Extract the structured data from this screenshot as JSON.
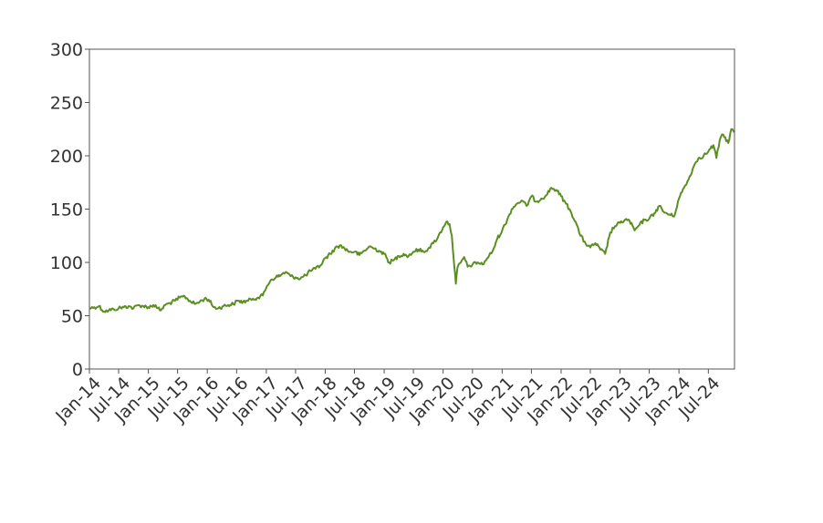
{
  "chart_data": {
    "type": "line",
    "title": "",
    "xlabel": "",
    "ylabel": "",
    "xlim": [
      "2014-01-01",
      "2024-12-10"
    ],
    "ylim": [
      0,
      300
    ],
    "grid": false,
    "y_ticks": [
      0,
      50,
      100,
      150,
      200,
      250,
      300
    ],
    "x_ticks": [
      {
        "date": "2014-01-01",
        "label": "Jan-14"
      },
      {
        "date": "2014-07-01",
        "label": "Jul-14"
      },
      {
        "date": "2015-01-01",
        "label": "Jan-15"
      },
      {
        "date": "2015-07-01",
        "label": "Jul-15"
      },
      {
        "date": "2016-01-01",
        "label": "Jan-16"
      },
      {
        "date": "2016-07-01",
        "label": "Jul-16"
      },
      {
        "date": "2017-01-01",
        "label": "Jan-17"
      },
      {
        "date": "2017-07-01",
        "label": "Jul-17"
      },
      {
        "date": "2018-01-01",
        "label": "Jan-18"
      },
      {
        "date": "2018-07-01",
        "label": "Jul-18"
      },
      {
        "date": "2019-01-01",
        "label": "Jan-19"
      },
      {
        "date": "2019-07-01",
        "label": "Jul-19"
      },
      {
        "date": "2020-01-01",
        "label": "Jan-20"
      },
      {
        "date": "2020-07-01",
        "label": "Jul-20"
      },
      {
        "date": "2021-01-01",
        "label": "Jan-21"
      },
      {
        "date": "2021-07-01",
        "label": "Jul-21"
      },
      {
        "date": "2022-01-01",
        "label": "Jan-22"
      },
      {
        "date": "2022-07-01",
        "label": "Jul-22"
      },
      {
        "date": "2023-01-01",
        "label": "Jan-23"
      },
      {
        "date": "2023-07-01",
        "label": "Jul-23"
      },
      {
        "date": "2024-01-01",
        "label": "Jan-24"
      },
      {
        "date": "2024-07-01",
        "label": "Jul-24"
      }
    ],
    "series": [
      {
        "color": "#5b8f22",
        "points": [
          [
            "2014-01-02",
            57
          ],
          [
            "2014-02-01",
            58
          ],
          [
            "2014-03-01",
            59
          ],
          [
            "2014-04-01",
            54
          ],
          [
            "2014-05-01",
            55
          ],
          [
            "2014-06-01",
            56
          ],
          [
            "2014-07-01",
            57
          ],
          [
            "2014-08-01",
            58
          ],
          [
            "2014-09-01",
            59
          ],
          [
            "2014-10-01",
            57
          ],
          [
            "2014-11-01",
            60
          ],
          [
            "2014-12-01",
            59
          ],
          [
            "2015-01-01",
            58
          ],
          [
            "2015-02-01",
            60
          ],
          [
            "2015-03-01",
            57
          ],
          [
            "2015-03-20",
            55
          ],
          [
            "2015-04-15",
            60
          ],
          [
            "2015-05-15",
            62
          ],
          [
            "2015-06-15",
            64
          ],
          [
            "2015-07-15",
            67
          ],
          [
            "2015-08-15",
            68
          ],
          [
            "2015-09-15",
            64
          ],
          [
            "2015-10-15",
            61
          ],
          [
            "2015-11-15",
            63
          ],
          [
            "2015-12-15",
            66
          ],
          [
            "2016-01-10",
            65
          ],
          [
            "2016-02-10",
            58
          ],
          [
            "2016-03-10",
            57
          ],
          [
            "2016-04-10",
            59
          ],
          [
            "2016-05-10",
            60
          ],
          [
            "2016-06-10",
            61
          ],
          [
            "2016-07-10",
            64
          ],
          [
            "2016-08-10",
            63
          ],
          [
            "2016-09-10",
            64
          ],
          [
            "2016-10-10",
            66
          ],
          [
            "2016-11-10",
            67
          ],
          [
            "2016-12-10",
            69
          ],
          [
            "2017-01-05",
            78
          ],
          [
            "2017-02-01",
            84
          ],
          [
            "2017-03-01",
            86
          ],
          [
            "2017-04-01",
            88
          ],
          [
            "2017-05-01",
            91
          ],
          [
            "2017-06-01",
            87
          ],
          [
            "2017-07-01",
            86
          ],
          [
            "2017-08-01",
            85
          ],
          [
            "2017-09-01",
            88
          ],
          [
            "2017-10-01",
            92
          ],
          [
            "2017-11-01",
            94
          ],
          [
            "2017-12-01",
            97
          ],
          [
            "2018-01-01",
            104
          ],
          [
            "2018-02-01",
            108
          ],
          [
            "2018-03-01",
            113
          ],
          [
            "2018-04-01",
            116
          ],
          [
            "2018-05-01",
            113
          ],
          [
            "2018-06-01",
            110
          ],
          [
            "2018-07-01",
            110
          ],
          [
            "2018-08-01",
            107
          ],
          [
            "2018-09-01",
            111
          ],
          [
            "2018-10-01",
            115
          ],
          [
            "2018-11-01",
            113
          ],
          [
            "2018-12-01",
            111
          ],
          [
            "2019-01-01",
            108
          ],
          [
            "2019-02-01",
            100
          ],
          [
            "2019-03-01",
            102
          ],
          [
            "2019-04-01",
            106
          ],
          [
            "2019-05-01",
            108
          ],
          [
            "2019-06-01",
            106
          ],
          [
            "2019-07-01",
            110
          ],
          [
            "2019-08-01",
            112
          ],
          [
            "2019-09-01",
            110
          ],
          [
            "2019-10-01",
            113
          ],
          [
            "2019-11-01",
            118
          ],
          [
            "2019-12-01",
            124
          ],
          [
            "2020-01-01",
            133
          ],
          [
            "2020-01-20",
            138
          ],
          [
            "2020-02-10",
            136
          ],
          [
            "2020-02-24",
            125
          ],
          [
            "2020-03-10",
            97
          ],
          [
            "2020-03-20",
            80
          ],
          [
            "2020-03-30",
            95
          ],
          [
            "2020-04-20",
            100
          ],
          [
            "2020-05-10",
            105
          ],
          [
            "2020-06-01",
            96
          ],
          [
            "2020-07-01",
            98
          ],
          [
            "2020-08-01",
            100
          ],
          [
            "2020-09-01",
            98
          ],
          [
            "2020-10-01",
            104
          ],
          [
            "2020-11-01",
            110
          ],
          [
            "2020-12-01",
            122
          ],
          [
            "2021-01-01",
            130
          ],
          [
            "2021-02-01",
            140
          ],
          [
            "2021-03-01",
            150
          ],
          [
            "2021-04-01",
            155
          ],
          [
            "2021-05-01",
            158
          ],
          [
            "2021-06-01",
            153
          ],
          [
            "2021-07-01",
            162
          ],
          [
            "2021-08-01",
            157
          ],
          [
            "2021-09-01",
            160
          ],
          [
            "2021-10-01",
            163
          ],
          [
            "2021-11-01",
            170
          ],
          [
            "2021-12-01",
            168
          ],
          [
            "2022-01-01",
            162
          ],
          [
            "2022-02-01",
            155
          ],
          [
            "2022-03-01",
            148
          ],
          [
            "2022-04-01",
            138
          ],
          [
            "2022-05-01",
            125
          ],
          [
            "2022-06-01",
            118
          ],
          [
            "2022-07-01",
            114
          ],
          [
            "2022-08-01",
            118
          ],
          [
            "2022-09-01",
            112
          ],
          [
            "2022-10-01",
            108
          ],
          [
            "2022-11-01",
            128
          ],
          [
            "2022-12-01",
            134
          ],
          [
            "2023-01-01",
            137
          ],
          [
            "2023-02-01",
            140
          ],
          [
            "2023-03-01",
            139
          ],
          [
            "2023-04-01",
            130
          ],
          [
            "2023-05-01",
            135
          ],
          [
            "2023-06-01",
            140
          ],
          [
            "2023-07-01",
            141
          ],
          [
            "2023-08-01",
            146
          ],
          [
            "2023-09-01",
            153
          ],
          [
            "2023-10-01",
            147
          ],
          [
            "2023-11-01",
            145
          ],
          [
            "2023-12-01",
            143
          ],
          [
            "2024-01-01",
            160
          ],
          [
            "2024-02-01",
            170
          ],
          [
            "2024-03-01",
            178
          ],
          [
            "2024-04-01",
            190
          ],
          [
            "2024-05-01",
            198
          ],
          [
            "2024-06-01",
            200
          ],
          [
            "2024-07-01",
            204
          ],
          [
            "2024-08-01",
            210
          ],
          [
            "2024-08-20",
            198
          ],
          [
            "2024-09-10",
            215
          ],
          [
            "2024-10-01",
            220
          ],
          [
            "2024-11-01",
            212
          ],
          [
            "2024-11-20",
            225
          ],
          [
            "2024-12-10",
            222
          ]
        ]
      }
    ]
  }
}
